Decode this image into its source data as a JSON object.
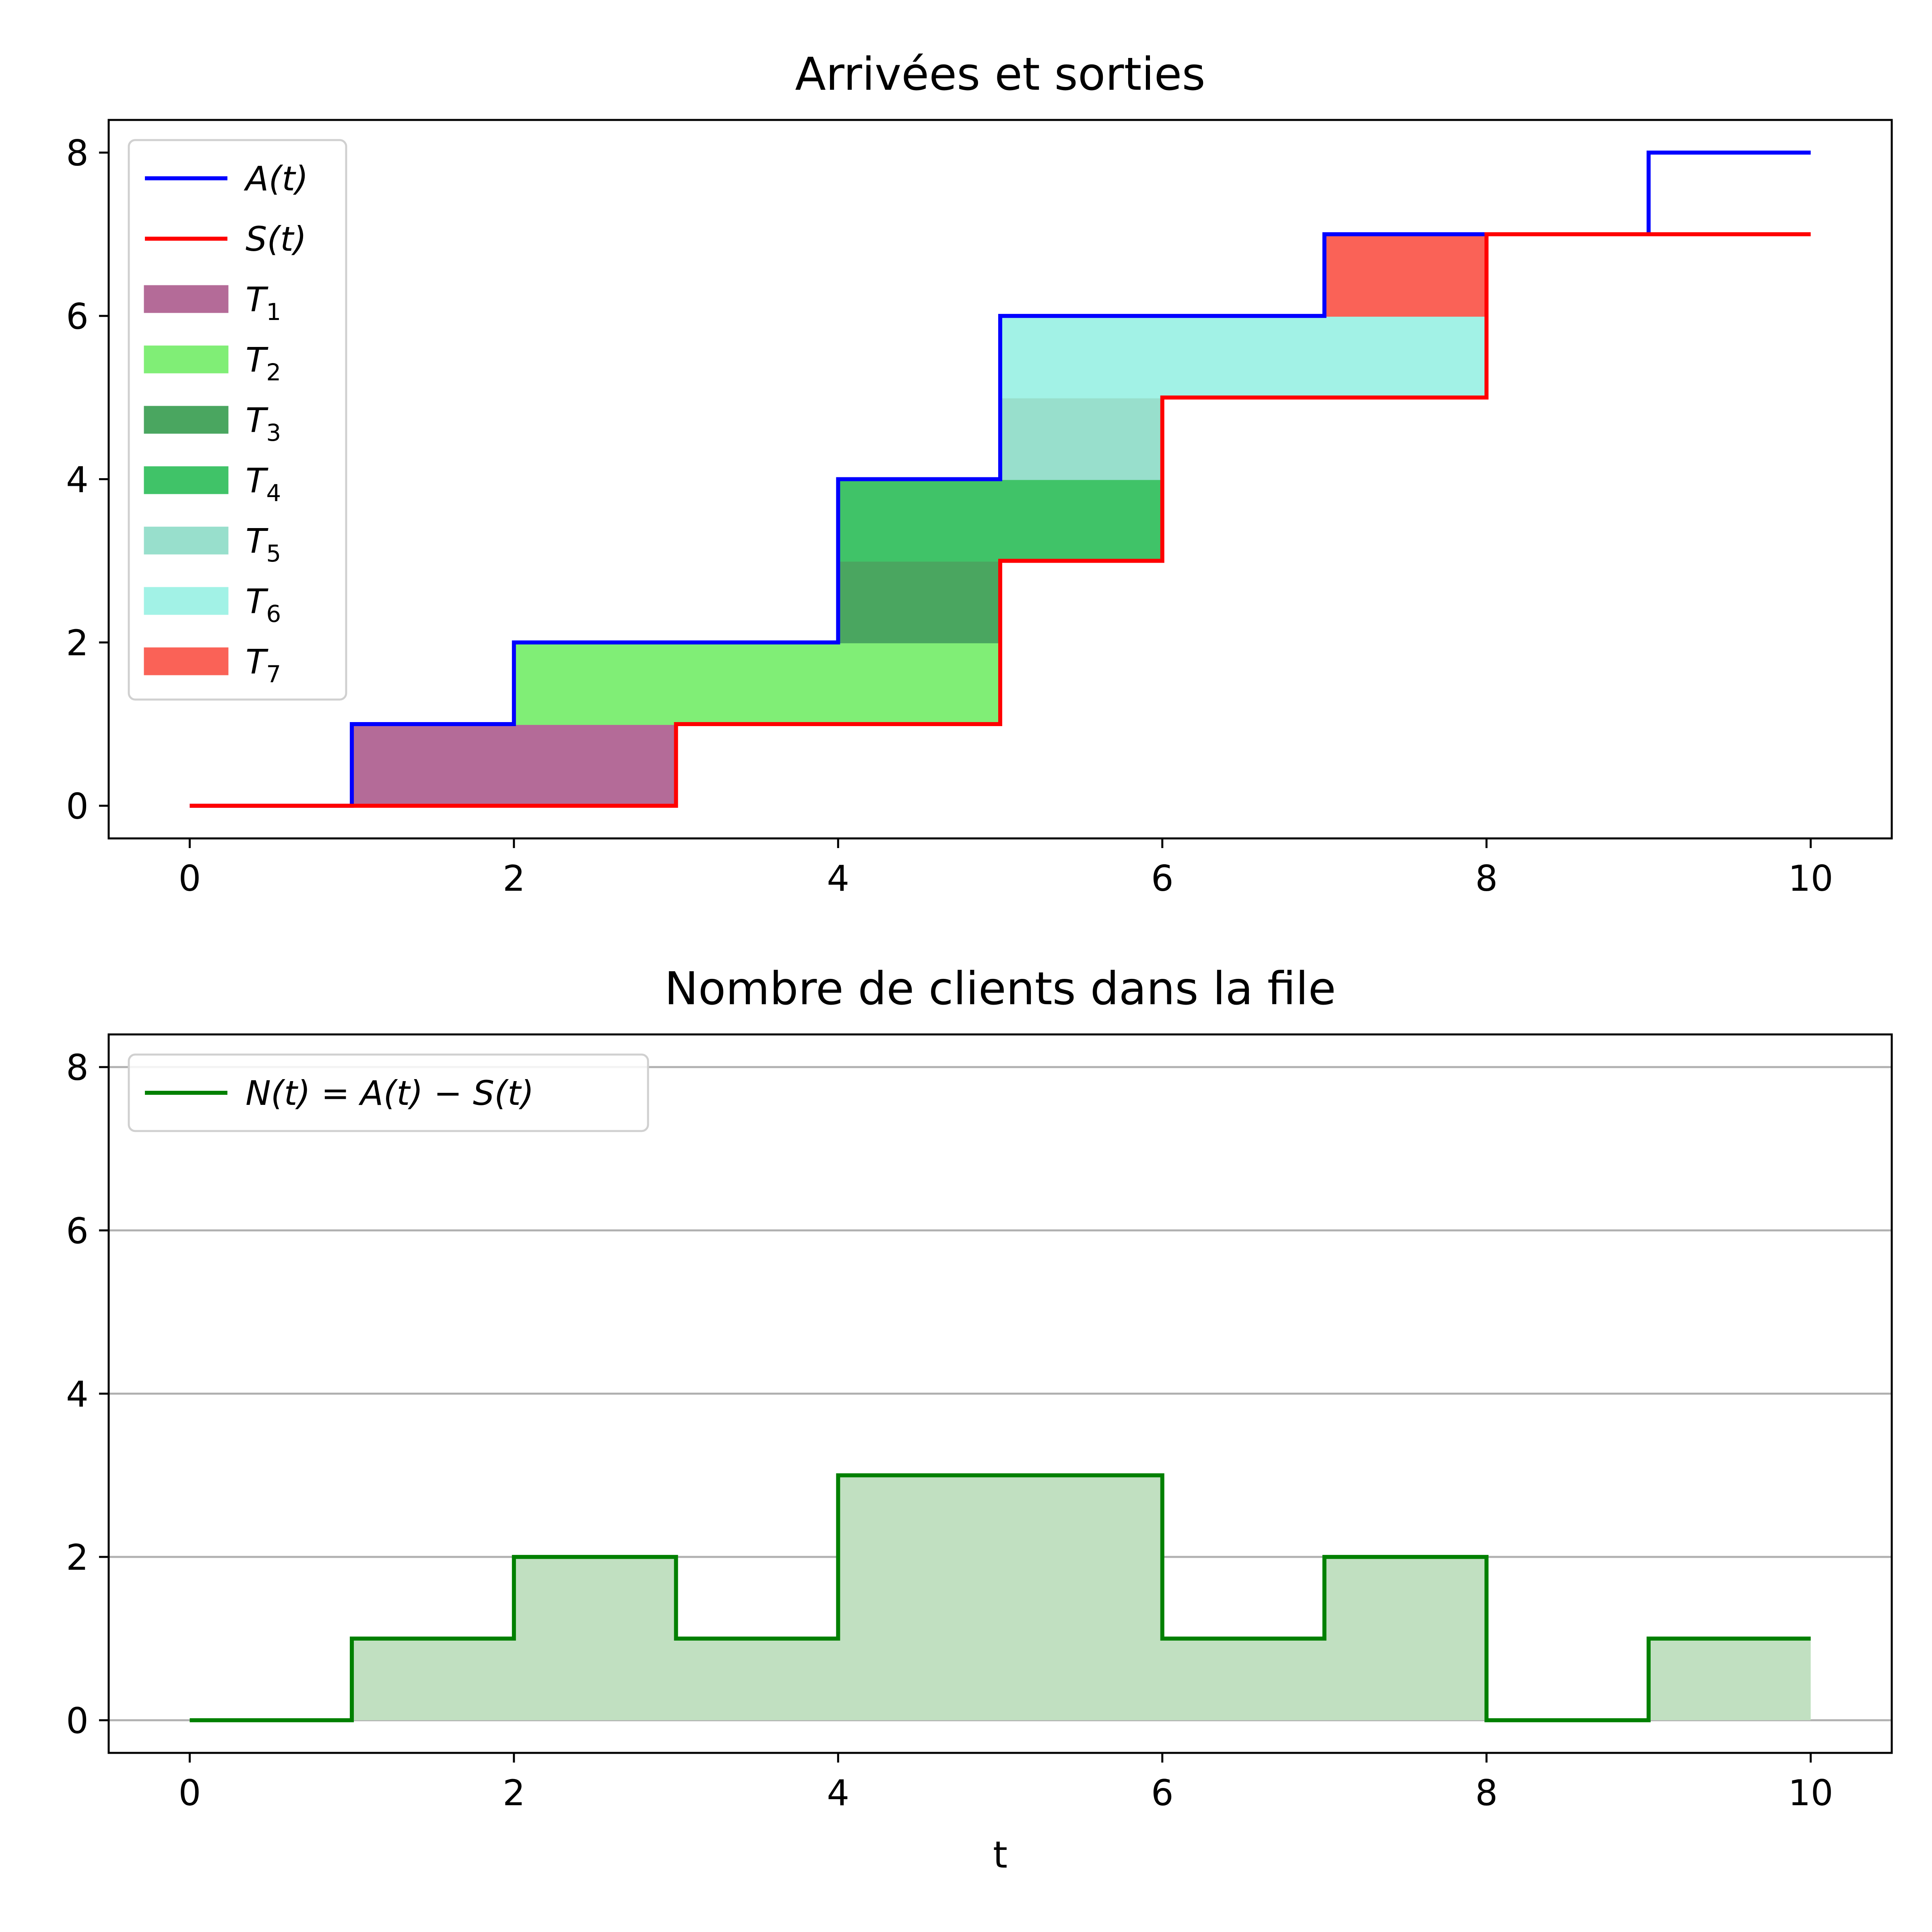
{
  "chart_data": [
    {
      "type": "line",
      "title": "Arrivées et sorties",
      "xlabel": "",
      "ylabel": "",
      "xlim": [
        -0.5,
        10.5
      ],
      "ylim": [
        -0.4,
        8.4
      ],
      "xticks": [
        0,
        2,
        4,
        6,
        8,
        10
      ],
      "yticks": [
        0,
        2,
        4,
        6,
        8
      ],
      "grid": false,
      "legend_position": "top-left",
      "series": [
        {
          "name": "A(t)",
          "color": "#0000ff",
          "x": [
            0,
            1,
            2,
            4,
            5,
            7,
            9,
            10
          ],
          "y": [
            0,
            1,
            2,
            4,
            6,
            7,
            8,
            8
          ]
        },
        {
          "name": "S(t)",
          "color": "#ff0000",
          "x": [
            0,
            3,
            5,
            6,
            8,
            10
          ],
          "y": [
            0,
            1,
            3,
            5,
            7,
            7
          ]
        }
      ],
      "regions": [
        {
          "name": "T",
          "sub": "1",
          "color": "#b46b98",
          "x": [
            1,
            3
          ],
          "y": [
            0,
            1
          ]
        },
        {
          "name": "T",
          "sub": "2",
          "color": "#80ee76",
          "x": [
            2,
            5
          ],
          "y": [
            1,
            2
          ]
        },
        {
          "name": "T",
          "sub": "3",
          "color": "#4aa660",
          "x": [
            4,
            5
          ],
          "y": [
            2,
            3
          ]
        },
        {
          "name": "T",
          "sub": "4",
          "color": "#40c368",
          "x": [
            4,
            6
          ],
          "y": [
            3,
            4
          ]
        },
        {
          "name": "T",
          "sub": "5",
          "color": "#98dfcc",
          "x": [
            5,
            6
          ],
          "y": [
            4,
            5
          ]
        },
        {
          "name": "T",
          "sub": "6",
          "color": "#a2f2e6",
          "x": [
            5,
            8
          ],
          "y": [
            5,
            6
          ]
        },
        {
          "name": "T",
          "sub": "7",
          "color": "#fa6257",
          "x": [
            7,
            8
          ],
          "y": [
            6,
            7
          ]
        }
      ]
    },
    {
      "type": "area",
      "title": "Nombre de clients dans la file",
      "xlabel": "t",
      "ylabel": "",
      "xlim": [
        -0.5,
        10.5
      ],
      "ylim": [
        -0.4,
        8.4
      ],
      "xticks": [
        0,
        2,
        4,
        6,
        8,
        10
      ],
      "yticks": [
        0,
        2,
        4,
        6,
        8
      ],
      "grid": true,
      "legend_position": "top-left",
      "fill_color": "#c1e0c1",
      "series": [
        {
          "name": "N(t) = A(t) − S(t)",
          "color": "#008000",
          "x": [
            0,
            1,
            2,
            3,
            4,
            6,
            7,
            8,
            9,
            10
          ],
          "y": [
            0,
            1,
            2,
            1,
            3,
            1,
            2,
            0,
            1,
            1
          ]
        }
      ]
    }
  ]
}
